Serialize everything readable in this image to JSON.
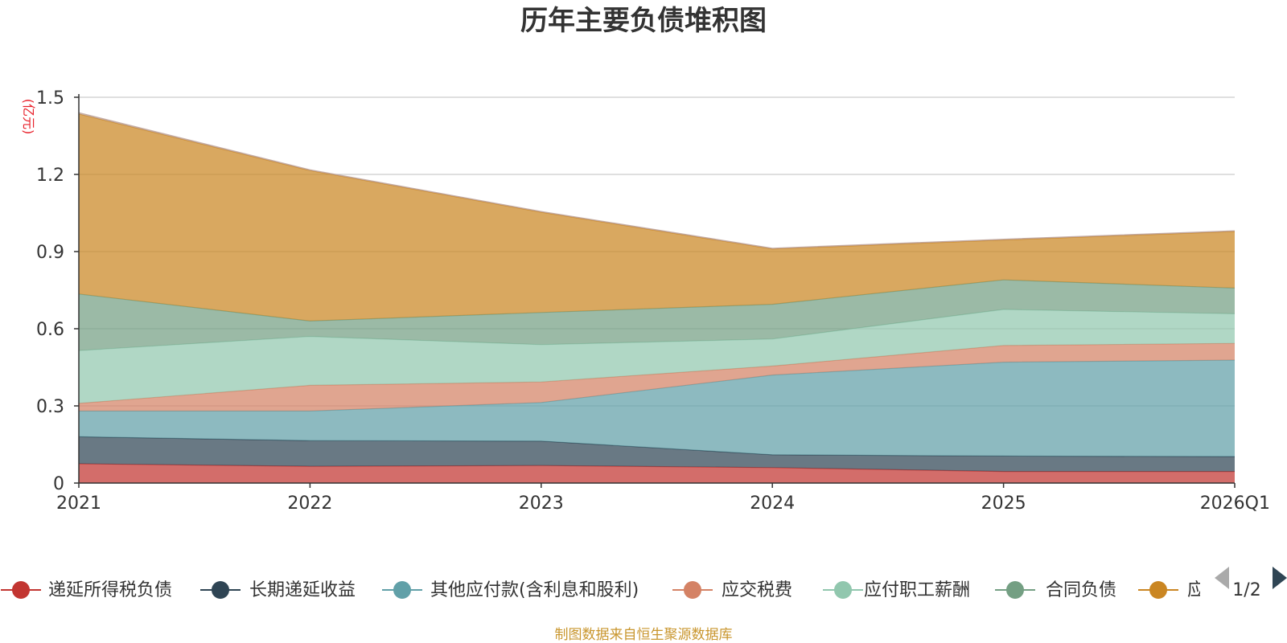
{
  "chart_data": {
    "type": "area",
    "stacked": true,
    "title": "历年主要负债堆积图",
    "unit_label": "(亿元)",
    "x": [
      "2021",
      "2022",
      "2023",
      "2024",
      "2025",
      "2026Q1"
    ],
    "ylim": [
      0,
      1.5
    ],
    "yticks": [
      "0",
      "0.3",
      "0.6",
      "0.9",
      "1.2",
      "1.5"
    ],
    "grid": true,
    "series": [
      {
        "name": "递延所得税负债",
        "color": "#c23531",
        "values": [
          0.075,
          0.065,
          0.068,
          0.06,
          0.045,
          0.045
        ]
      },
      {
        "name": "长期递延收益",
        "color": "#2f4554",
        "values": [
          0.105,
          0.1,
          0.095,
          0.05,
          0.06,
          0.058
        ]
      },
      {
        "name": "其他应付款(含利息和股利)",
        "color": "#61a0a8",
        "values": [
          0.1,
          0.115,
          0.15,
          0.31,
          0.365,
          0.375
        ]
      },
      {
        "name": "应交税费",
        "color": "#d48265",
        "values": [
          0.03,
          0.1,
          0.08,
          0.035,
          0.065,
          0.065
        ]
      },
      {
        "name": "应付职工薪酬",
        "color": "#91c7ae",
        "values": [
          0.205,
          0.19,
          0.145,
          0.105,
          0.14,
          0.115
        ]
      },
      {
        "name": "合同负债",
        "color": "#749f83",
        "values": [
          0.22,
          0.06,
          0.125,
          0.135,
          0.115,
          0.1
        ]
      },
      {
        "name": "应付账款",
        "color": "#ca8622",
        "values": [
          0.7,
          0.585,
          0.39,
          0.215,
          0.155,
          0.22
        ]
      },
      {
        "name": "",
        "color": "#bda29a",
        "values": [
          0.005,
          0.003,
          0.003,
          0.003,
          0.003,
          0.003
        ]
      }
    ],
    "legend": {
      "visible_items": [
        "递延所得税负债",
        "长期递延收益",
        "其他应付款(含利息和股利)",
        "应交税费",
        "应付职工薪酬",
        "合同负债",
        "应付账款"
      ],
      "page": "1/2"
    },
    "source_note": "制图数据来自恒生聚源数据库"
  }
}
